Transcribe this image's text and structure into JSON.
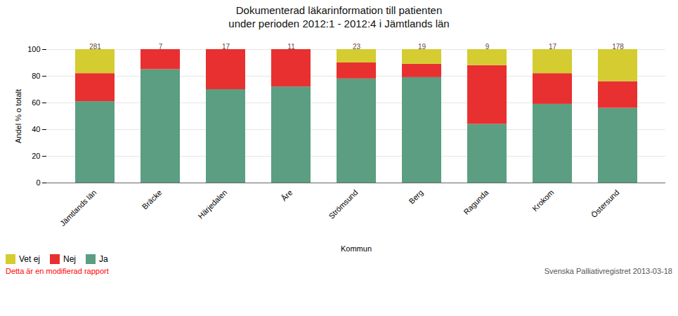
{
  "chart_data": {
    "type": "bar",
    "stacked": true,
    "title": "Dokumenterad läkarinformation till patienten\nunder perioden 2012:1 - 2012:4 i Jämtlands län",
    "xlabel": "Kommun",
    "ylabel": "Andel % o totalt",
    "categories": [
      "Jämtlands län",
      "Bräcke",
      "Härjedalen",
      "Åre",
      "Strömsund",
      "Berg",
      "Ragunda",
      "Krokom",
      "Östersund"
    ],
    "series": [
      {
        "name": "Ja",
        "color": "#5B9E82",
        "values": [
          61,
          85,
          70,
          72,
          78,
          79,
          44,
          59,
          56
        ]
      },
      {
        "name": "Nej",
        "color": "#E83030",
        "values": [
          21,
          15,
          30,
          28,
          12,
          10,
          44,
          23,
          20
        ]
      },
      {
        "name": "Vet ej",
        "color": "#D4CC30",
        "values": [
          18,
          0,
          0,
          0,
          10,
          11,
          12,
          18,
          24
        ]
      }
    ],
    "totals": [
      281,
      7,
      17,
      11,
      23,
      19,
      9,
      17,
      178
    ],
    "ylim": [
      0,
      100
    ],
    "yticks": [
      0,
      20,
      40,
      60,
      80,
      100
    ],
    "grid": true,
    "legend": "lower left",
    "annotations": [
      "Detta är en modifierad rapport",
      "Svenska Palliativregistret 2013-03-18"
    ]
  }
}
